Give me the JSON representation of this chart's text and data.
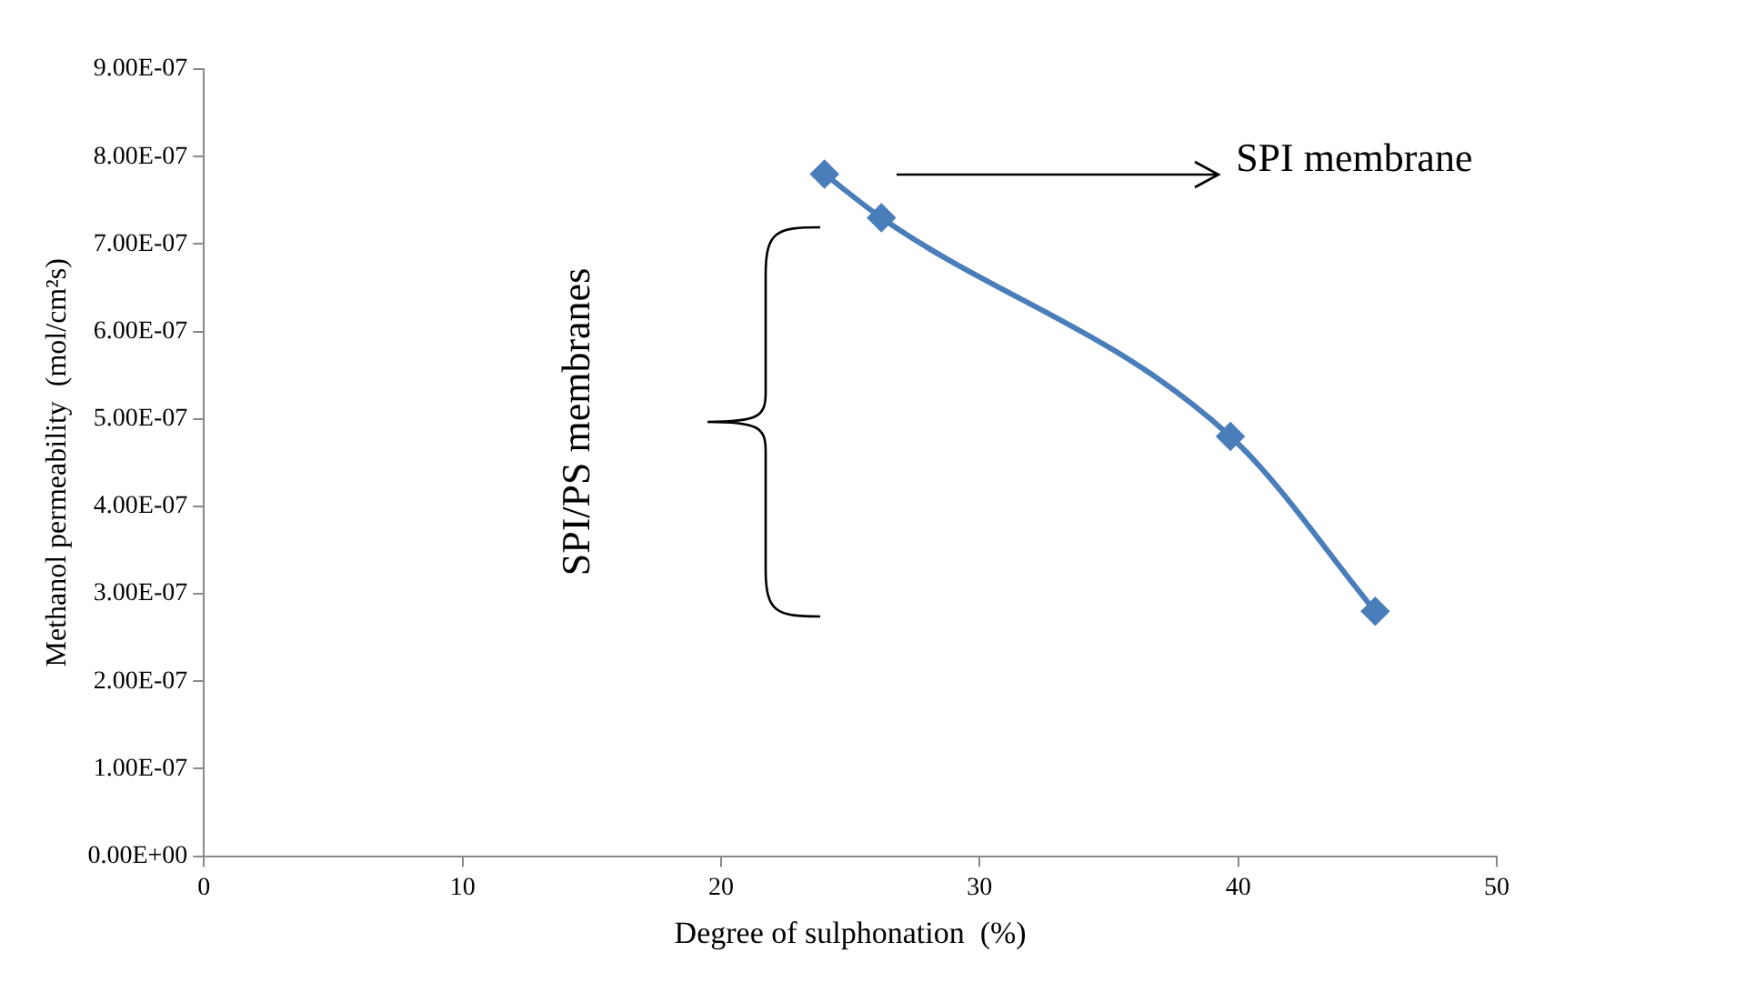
{
  "chart_data": {
    "type": "line",
    "xlabel": "Degree of sulphonation  (%)",
    "ylabel": "Methanol permeability  (mol/cm²s)",
    "x": [
      24,
      26.2,
      39.7,
      45.3
    ],
    "series": [
      {
        "color": "#4a7ebb",
        "values": [
          7.8e-07,
          7.3e-07,
          4.8e-07,
          2.8e-07
        ]
      }
    ],
    "xlim": [
      0,
      50
    ],
    "xticks": [
      0,
      10,
      20,
      30,
      40,
      50
    ],
    "ylim": [
      0,
      9e-07
    ],
    "yticks": [
      {
        "value": 0,
        "label": "0.00E+00"
      },
      {
        "value": 1e-07,
        "label": "1.00E-07"
      },
      {
        "value": 2e-07,
        "label": "2.00E-07"
      },
      {
        "value": 3e-07,
        "label": "3.00E-07"
      },
      {
        "value": 4e-07,
        "label": "4.00E-07"
      },
      {
        "value": 5e-07,
        "label": "5.00E-07"
      },
      {
        "value": 6e-07,
        "label": "6.00E-07"
      },
      {
        "value": 7e-07,
        "label": "7.00E-07"
      },
      {
        "value": 8e-07,
        "label": "8.00E-07"
      },
      {
        "value": 9e-07,
        "label": "9.00E-07"
      }
    ],
    "annotations": [
      "SPI membrane",
      "SPI/PS membranes"
    ],
    "grid": false,
    "legend": false,
    "marker": "diamond",
    "line_style": "solid"
  }
}
